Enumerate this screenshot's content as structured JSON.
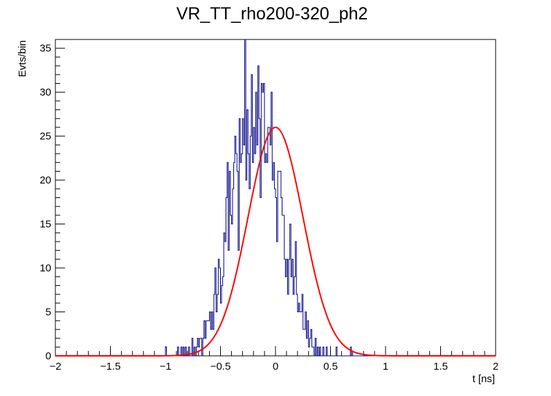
{
  "chart_data": {
    "type": "histogram",
    "title": "VR_TT_rho200-320_ph2",
    "xlabel": "t [ns]",
    "ylabel": "Evts/bin",
    "xlim": [
      -2,
      2
    ],
    "ylim": [
      0,
      36
    ],
    "x_ticks": [
      "−2",
      "−1.5",
      "−1",
      "−0.5",
      "0",
      "0.5",
      "1",
      "1.5",
      "2"
    ],
    "x_tick_values": [
      -2,
      -1.5,
      -1,
      -0.5,
      0,
      0.5,
      1,
      1.5,
      2
    ],
    "y_ticks": [
      "0",
      "5",
      "10",
      "15",
      "20",
      "25",
      "30",
      "35"
    ],
    "y_tick_values": [
      0,
      5,
      10,
      15,
      20,
      25,
      30,
      35
    ],
    "bin_width": 0.01,
    "hist_start": -1.0,
    "hist_counts": [
      1,
      0,
      0,
      0,
      0,
      0,
      0,
      0,
      0,
      0,
      0,
      1,
      0,
      0,
      1,
      0,
      1,
      0,
      1,
      0,
      0,
      1,
      0,
      0,
      2,
      0,
      1,
      0,
      1,
      2,
      1,
      2,
      2,
      0,
      2,
      4,
      2,
      4,
      4,
      4,
      5,
      3,
      5,
      3,
      7,
      10,
      5,
      7,
      11,
      10,
      6,
      8,
      9,
      14,
      13,
      18,
      22,
      12,
      21,
      16,
      15,
      19,
      22,
      25,
      23,
      21,
      12,
      27,
      22,
      23,
      27,
      24,
      37,
      20,
      28,
      23,
      19,
      25,
      32,
      22,
      26,
      23,
      30,
      24,
      33,
      27,
      18,
      31,
      30,
      31,
      22,
      23,
      22,
      26,
      26,
      24,
      30,
      20,
      22,
      19,
      18,
      13,
      21,
      21,
      21,
      18,
      16,
      16,
      11,
      9,
      11,
      7,
      11,
      15,
      9,
      11,
      7,
      9,
      13,
      7,
      5,
      6,
      5,
      5,
      7,
      3,
      3,
      5,
      2,
      4,
      1,
      2,
      3,
      1,
      1,
      0,
      2,
      0,
      1,
      0,
      1,
      0,
      0,
      1,
      0,
      0,
      1,
      0,
      0,
      0,
      0,
      0,
      0,
      0,
      0,
      1,
      0,
      0,
      0,
      0,
      0,
      0,
      0,
      0,
      0,
      0,
      0,
      0,
      1,
      0
    ],
    "series": [
      {
        "name": "histogram",
        "color": "#000080"
      },
      {
        "name": "gaussian fit",
        "color": "#ff0000",
        "amplitude": 26.0,
        "mean": 0.0,
        "sigma": 0.25
      }
    ]
  }
}
